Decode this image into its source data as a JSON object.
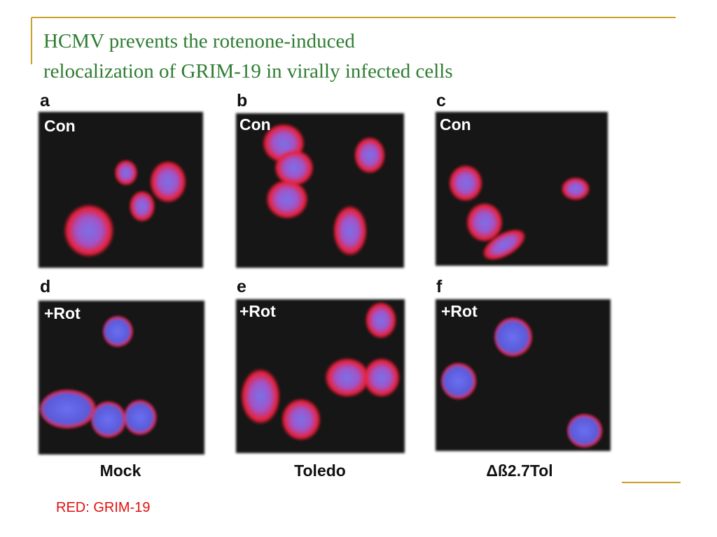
{
  "title_lines": [
    "HCMV prevents the rotenone-induced",
    "relocalization of  GRIM-19 in virally infected cells"
  ],
  "panels": [
    {
      "letter": "a",
      "label": "Con"
    },
    {
      "letter": "b",
      "label": "Con"
    },
    {
      "letter": "c",
      "label": "Con"
    },
    {
      "letter": "d",
      "label": "+Rot"
    },
    {
      "letter": "e",
      "label": "+Rot"
    },
    {
      "letter": "f",
      "label": "+Rot"
    }
  ],
  "columns": [
    "Mock",
    "Toledo",
    "Δß2.7Tol"
  ],
  "caption": "RED: GRIM-19"
}
